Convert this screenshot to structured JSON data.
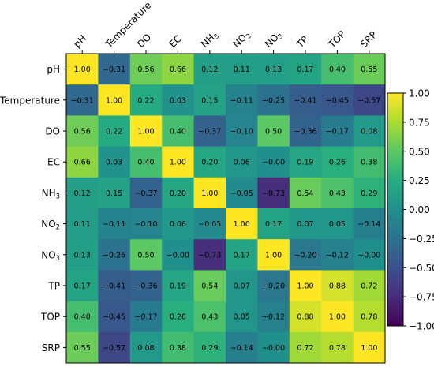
{
  "chart_data": {
    "type": "heatmap",
    "variables": [
      "pH",
      "Temperature",
      "DO",
      "EC",
      "NH₃",
      "NO₂",
      "NO₃",
      "TP",
      "TOP",
      "SRP"
    ],
    "matrix": [
      [
        1.0,
        -0.31,
        0.56,
        0.66,
        0.12,
        0.11,
        0.13,
        0.17,
        0.4,
        0.55
      ],
      [
        -0.31,
        1.0,
        0.22,
        0.03,
        0.15,
        -0.11,
        -0.25,
        -0.41,
        -0.45,
        -0.57
      ],
      [
        0.56,
        0.22,
        1.0,
        0.4,
        -0.37,
        -0.1,
        0.5,
        -0.36,
        -0.17,
        0.08
      ],
      [
        0.66,
        0.03,
        0.4,
        1.0,
        0.2,
        0.06,
        -0.0,
        0.19,
        0.26,
        0.38
      ],
      [
        0.12,
        0.15,
        -0.37,
        0.2,
        1.0,
        -0.05,
        -0.73,
        0.54,
        0.43,
        0.29
      ],
      [
        0.11,
        -0.11,
        -0.1,
        0.06,
        -0.05,
        1.0,
        0.17,
        0.07,
        0.05,
        -0.14
      ],
      [
        0.13,
        -0.25,
        0.5,
        -0.0,
        -0.73,
        0.17,
        1.0,
        -0.2,
        -0.12,
        -0.0
      ],
      [
        0.17,
        -0.41,
        -0.36,
        0.19,
        0.54,
        0.07,
        -0.2,
        1.0,
        0.88,
        0.72
      ],
      [
        0.4,
        -0.45,
        -0.17,
        0.26,
        0.43,
        0.05,
        -0.12,
        0.88,
        1.0,
        0.78
      ],
      [
        0.55,
        -0.57,
        0.08,
        0.38,
        0.29,
        -0.14,
        -0.0,
        0.72,
        0.78,
        1.0
      ]
    ],
    "colorscale": "viridis",
    "vmin": -1.0,
    "vmax": 1.0,
    "colorbar_ticks": [
      "1.00",
      "0.75",
      "0.50",
      "0.25",
      "0.00",
      "−0.25",
      "−0.50",
      "−0.75",
      "−1.00"
    ],
    "colorbar_tick_values": [
      1.0,
      0.75,
      0.5,
      0.25,
      0.0,
      -0.25,
      -0.5,
      -0.75,
      -1.0
    ],
    "x_tick_position": "top",
    "colorbar_position": "right"
  }
}
